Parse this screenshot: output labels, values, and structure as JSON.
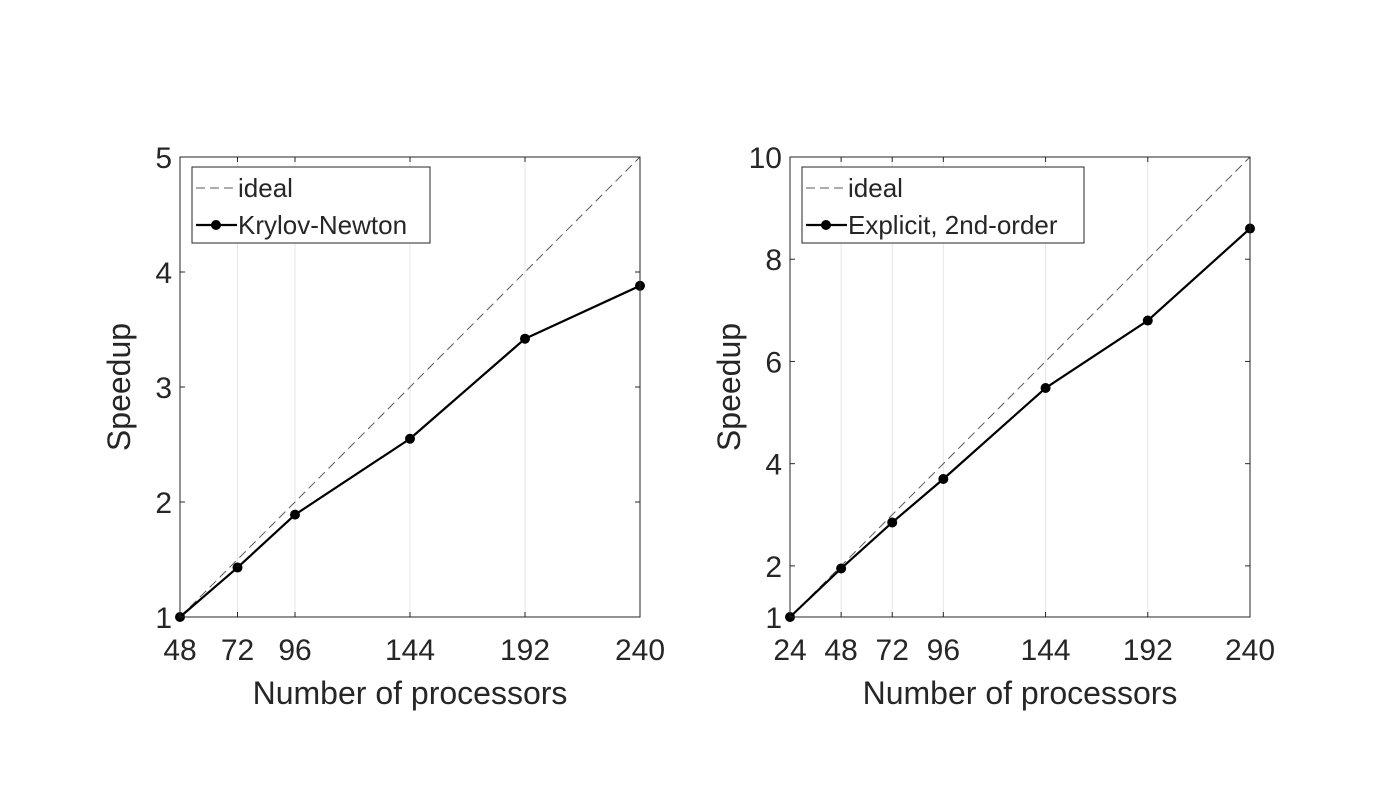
{
  "chart_data": [
    {
      "type": "line",
      "xlabel": "Number of processors",
      "ylabel": "Speedup",
      "xlim": [
        48,
        240
      ],
      "ylim": [
        1,
        5
      ],
      "xticks": [
        48,
        72,
        96,
        144,
        192,
        240
      ],
      "yticks": [
        1,
        2,
        3,
        4,
        5
      ],
      "grid": "vertical",
      "legend_position": "top-left",
      "series": [
        {
          "name": "ideal",
          "style": "dashed",
          "color": "#808080",
          "x": [
            48,
            240
          ],
          "y": [
            1,
            5
          ]
        },
        {
          "name": "Krylov-Newton",
          "style": "solid-markers",
          "color": "#000000",
          "x": [
            48,
            72,
            96,
            144,
            192,
            240
          ],
          "y": [
            1.0,
            1.43,
            1.89,
            2.55,
            3.42,
            3.88
          ]
        }
      ]
    },
    {
      "type": "line",
      "xlabel": "Number of processors",
      "ylabel": "Speedup",
      "xlim": [
        24,
        240
      ],
      "ylim": [
        1,
        10
      ],
      "xticks": [
        24,
        48,
        72,
        96,
        144,
        192,
        240
      ],
      "yticks": [
        1,
        2,
        4,
        6,
        8,
        10
      ],
      "grid": "vertical",
      "legend_position": "top-left",
      "series": [
        {
          "name": "ideal",
          "style": "dashed",
          "color": "#808080",
          "x": [
            24,
            240
          ],
          "y": [
            1,
            10
          ]
        },
        {
          "name": "Explicit, 2nd-order",
          "style": "solid-markers",
          "color": "#000000",
          "x": [
            24,
            48,
            72,
            96,
            144,
            192,
            240
          ],
          "y": [
            1.0,
            1.95,
            2.85,
            3.7,
            5.48,
            6.8,
            8.6
          ]
        }
      ]
    }
  ]
}
